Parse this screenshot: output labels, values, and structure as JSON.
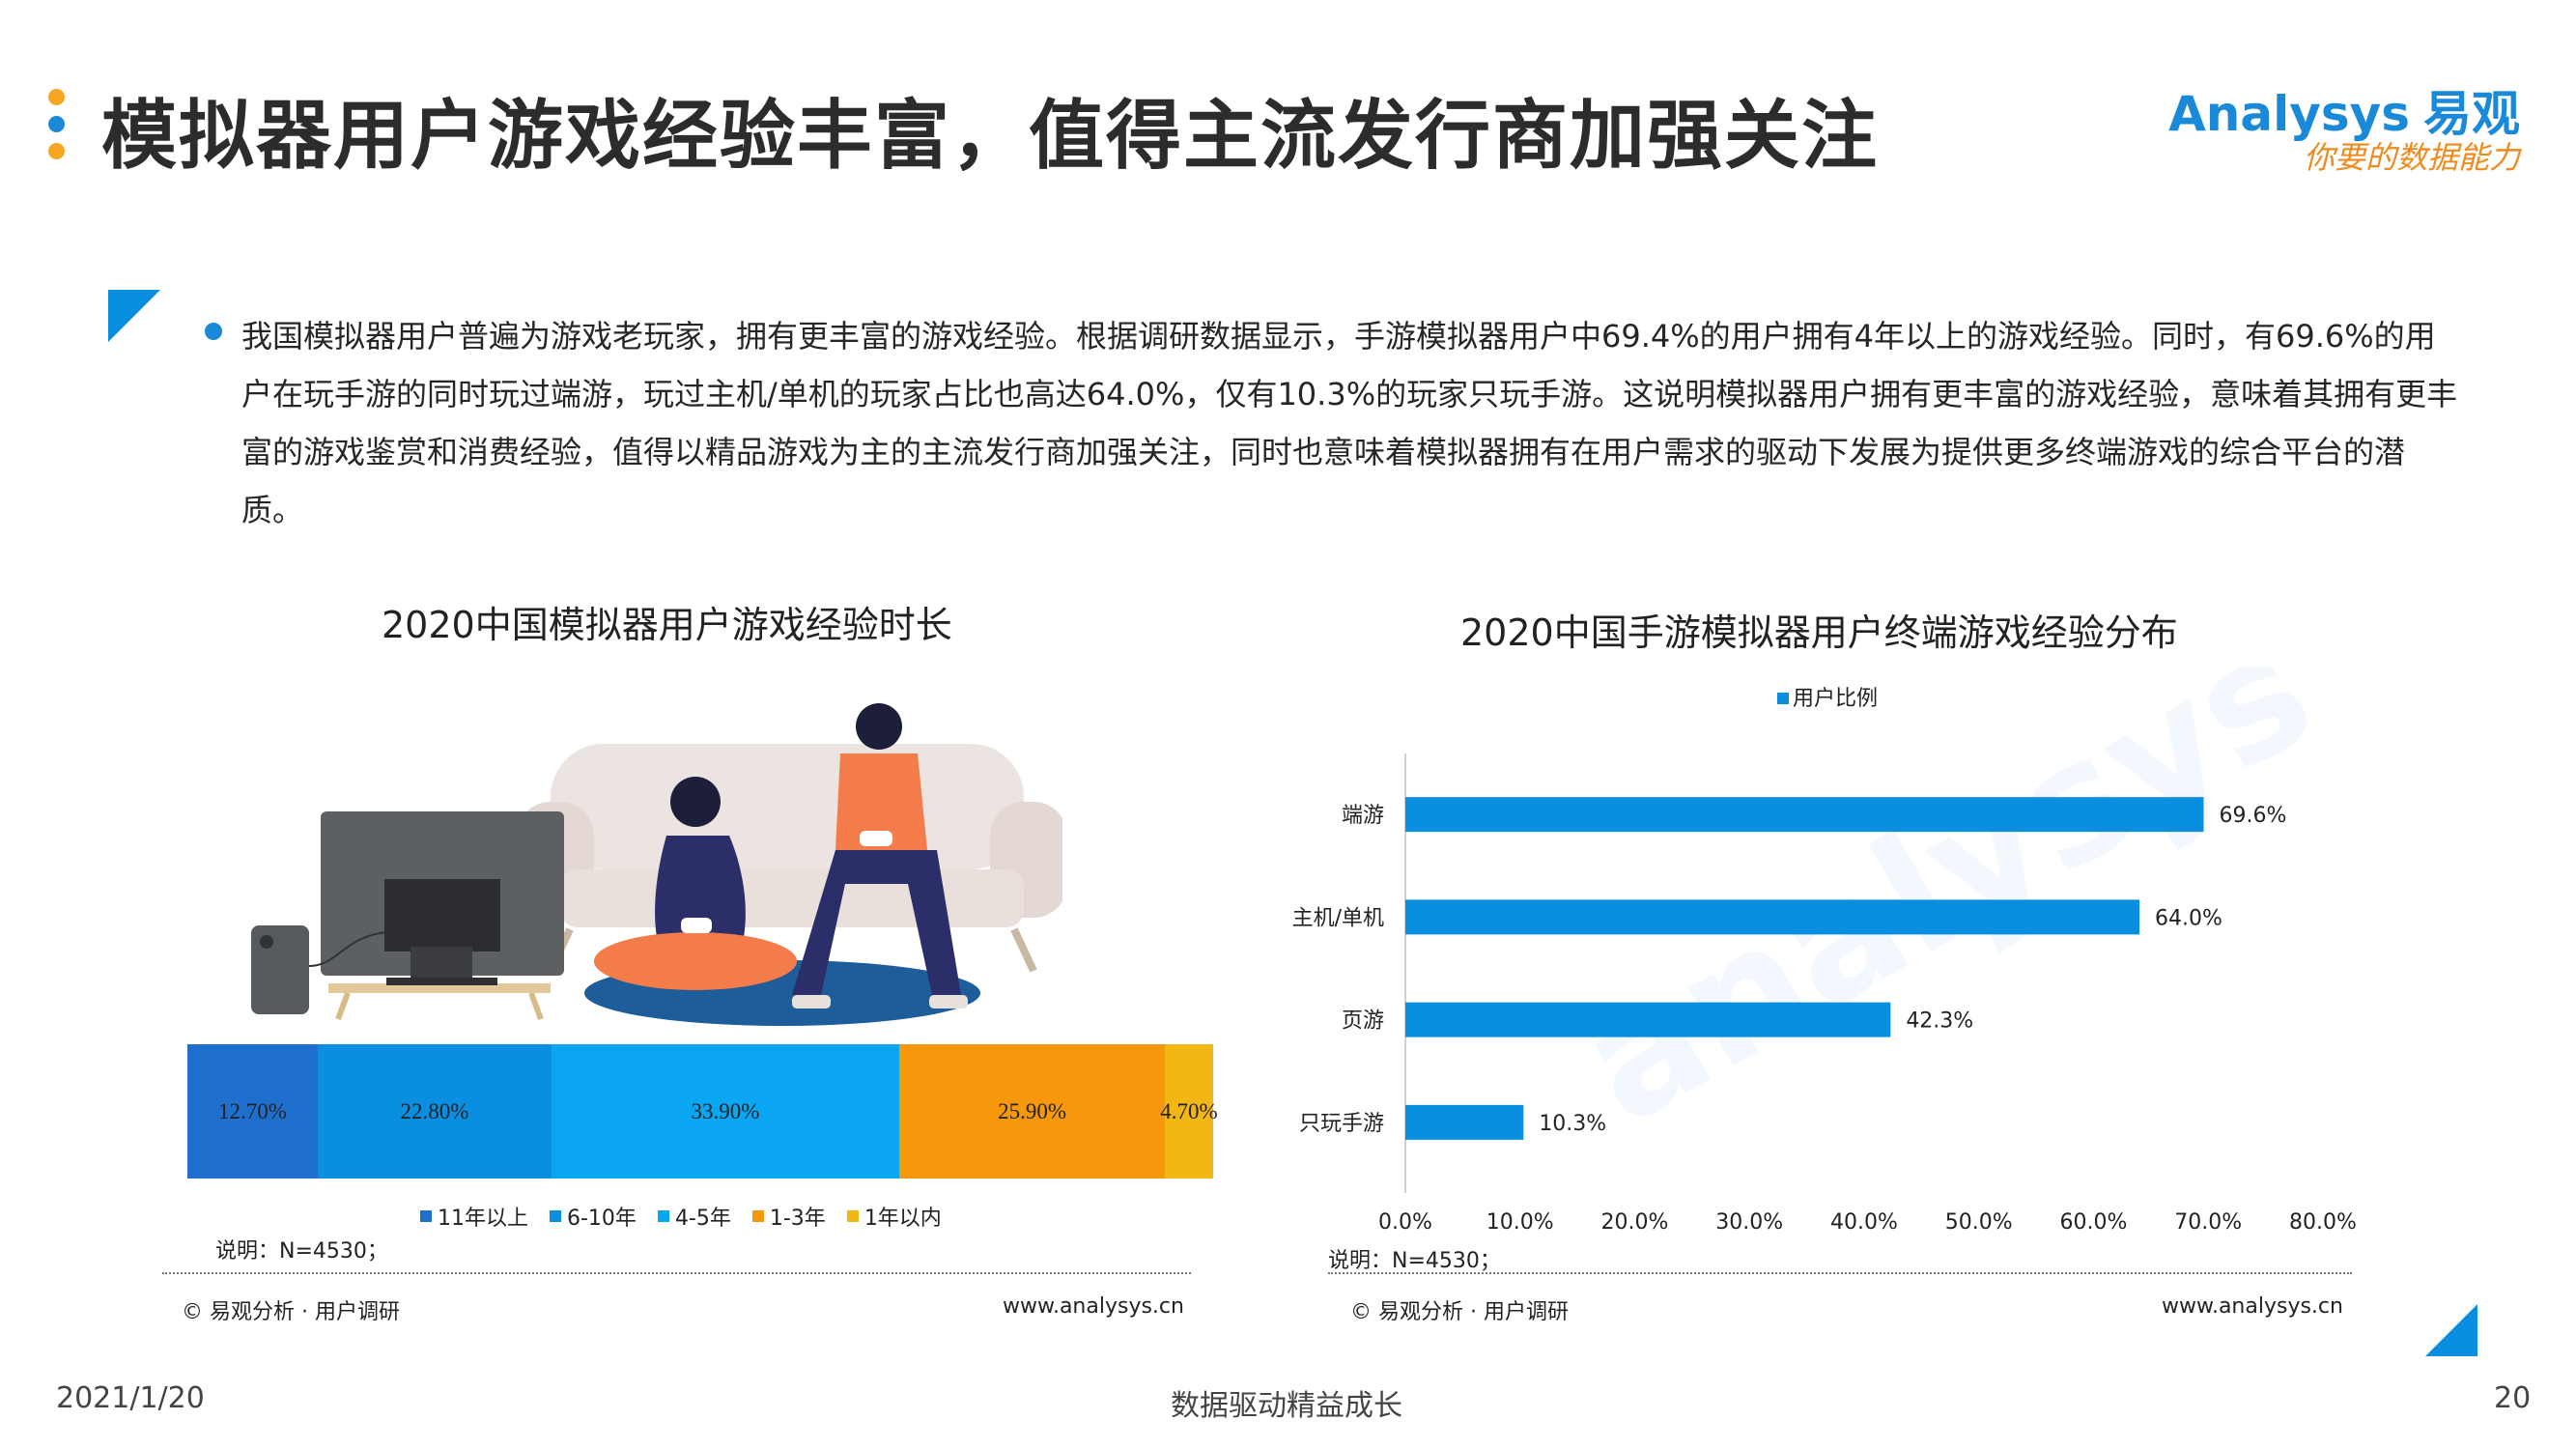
{
  "header": {
    "title": "模拟器用户游戏经验丰富，值得主流发行商加强关注",
    "dot_colors": [
      "#f5a623",
      "#1a8ad8",
      "#f5a623"
    ]
  },
  "logo": {
    "brand": "Analysys",
    "brand_cn": "易观",
    "slogan": "你要的数据能力"
  },
  "summary": {
    "text": "我国模拟器用户普遍为游戏老玩家，拥有更丰富的游戏经验。根据调研数据显示，手游模拟器用户中69.4%的用户拥有4年以上的游戏经验。同时，有69.6%的用户在玩手游的同时玩过端游，玩过主机/单机的玩家占比也高达64.0%，仅有10.3%的玩家只玩手游。这说明模拟器用户拥有更丰富的游戏经验，意味着其拥有更丰富的游戏鉴赏和消费经验，值得以精品游戏为主的主流发行商加强关注，同时也意味着模拟器拥有在用户需求的驱动下发展为提供更多终端游戏的综合平台的潜质。"
  },
  "chart_data": [
    {
      "type": "bar",
      "orientation": "stacked-horizontal",
      "title": "2020中国模拟器用户游戏经验时长",
      "categories": [
        "11年以上",
        "6-10年",
        "4-5年",
        "1-3年",
        "1年以内"
      ],
      "values": [
        12.7,
        22.8,
        33.9,
        25.9,
        4.7
      ],
      "labels": [
        "12.70%",
        "22.80%",
        "33.90%",
        "25.90%",
        "4.70%"
      ],
      "colors": [
        "#1f6fcf",
        "#0a8fe0",
        "#0aa6f2",
        "#f5980c",
        "#f2b714"
      ],
      "legend": "bottom",
      "note": "说明：N=4530；",
      "source": "© 易观分析 · 用户调研",
      "website": "www.analysys.cn"
    },
    {
      "type": "bar",
      "orientation": "horizontal",
      "title": "2020中国手游模拟器用户终端游戏经验分布",
      "categories": [
        "端游",
        "主机/单机",
        "页游",
        "只玩手游"
      ],
      "series": [
        {
          "name": "用户比例",
          "values": [
            69.6,
            64.0,
            42.3,
            10.3
          ]
        }
      ],
      "labels": [
        "69.6%",
        "64.0%",
        "42.3%",
        "10.3%"
      ],
      "xlim": [
        0,
        80
      ],
      "xticks": [
        "0.0%",
        "10.0%",
        "20.0%",
        "30.0%",
        "40.0%",
        "50.0%",
        "60.0%",
        "70.0%",
        "80.0%"
      ],
      "bar_color": "#0a8fe0",
      "legend": "top-left",
      "note": "说明：N=4530；",
      "source": "© 易观分析 · 用户调研",
      "website": "www.analysys.cn"
    }
  ],
  "footer": {
    "date": "2021/1/20",
    "tagline": "数据驱动精益成长",
    "page": "20"
  }
}
